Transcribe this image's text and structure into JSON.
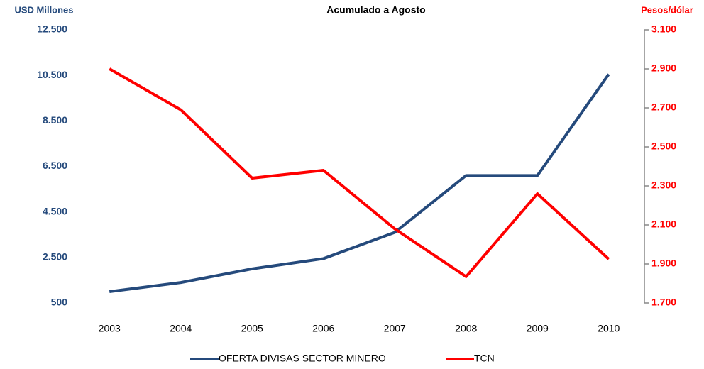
{
  "chart_data": {
    "type": "line",
    "title": "Acumulado a Agosto",
    "y_label": "USD Millones",
    "y2_label": "Pesos/dólar",
    "categories": [
      "2003",
      "2004",
      "2005",
      "2006",
      "2007",
      "2008",
      "2009",
      "2010"
    ],
    "series": [
      {
        "name": "OFERTA DIVISAS SECTOR MINERO",
        "color": "#254a7c",
        "values": [
          1000,
          1400,
          2000,
          2450,
          3600,
          6100,
          6100,
          10550
        ]
      },
      {
        "name": "TCN",
        "color": "#ff0000",
        "axis": "y2",
        "values": [
          2900,
          2690,
          2340,
          2380,
          2080,
          1835,
          2260,
          1925
        ]
      }
    ],
    "ylim": [
      500,
      12500
    ],
    "yticks": [
      500,
      {
        "value": 2500,
        "label": "2.500"
      },
      {
        "value": 4500,
        "label": "4.500"
      },
      {
        "value": 6500,
        "label": "6.500"
      },
      {
        "value": 8500,
        "label": "8.500"
      },
      {
        "value": 10500,
        "label": "10.500"
      },
      {
        "value": 12500,
        "label": "12.500"
      }
    ],
    "y2lim": [
      1700,
      3100
    ],
    "y2ticks": [
      {
        "value": 1700,
        "label": "1.700"
      },
      {
        "value": 1900,
        "label": "1.900"
      },
      {
        "value": 2100,
        "label": "2.100"
      },
      {
        "value": 2300,
        "label": "2.300"
      },
      {
        "value": 2500,
        "label": "2.500"
      },
      {
        "value": 2700,
        "label": "2.700"
      },
      {
        "value": 2900,
        "label": "2.900"
      },
      {
        "value": 3100,
        "label": "3.100"
      }
    ],
    "legend": "bottom"
  }
}
